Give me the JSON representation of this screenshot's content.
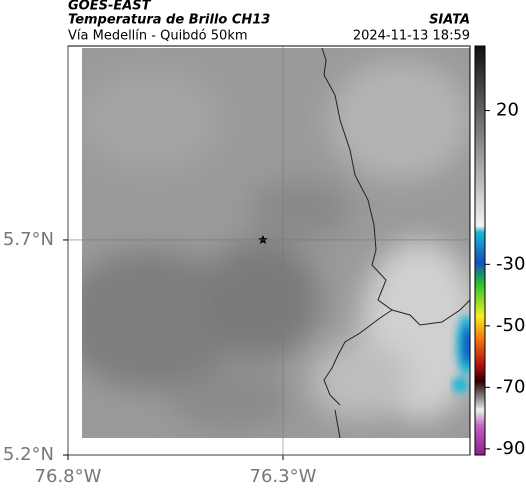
{
  "header": {
    "satellite": "GOES-EAST",
    "product": "Temperatura de Brillo CH13",
    "route": "Vía Medellín - Quibdó 50km",
    "org": "SIATA",
    "datetime": "2024-11-13 18:59"
  },
  "map": {
    "xlim": [
      -76.8,
      -75.865
    ],
    "ylim": [
      5.2,
      6.151
    ],
    "xticks": [
      {
        "value": -76.8,
        "label": "76.8°W"
      },
      {
        "value": -76.3,
        "label": "76.3°W"
      }
    ],
    "yticks": [
      {
        "value": 5.7,
        "label": "5.7°N"
      },
      {
        "value": 5.2,
        "label": "5.2°N"
      }
    ]
  },
  "colorbar": {
    "lim": [
      41,
      -92
    ],
    "ticks": [
      20,
      -30,
      -50,
      -70,
      -90
    ]
  }
}
